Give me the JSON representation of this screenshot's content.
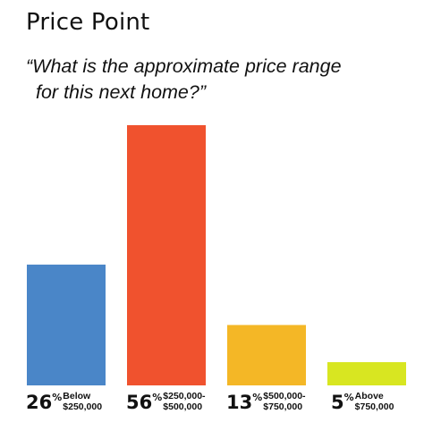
{
  "title": "Price Point",
  "question_line1": "“What is the approximate price range",
  "question_line2": "for this next home?”",
  "chart_data": {
    "type": "bar",
    "categories": [
      "Below $250,000",
      "$250,000-$500,000",
      "$500,000-$750,000",
      "Above $750,000"
    ],
    "values": [
      26,
      56,
      13,
      5
    ],
    "colors": [
      "#4a86c8",
      "#f0522e",
      "#f4b726",
      "#d8e621"
    ],
    "unit": "%",
    "ylim": [
      0,
      56
    ],
    "grid": false,
    "legend": "none",
    "data_labels": [
      {
        "value": "26",
        "sign": "%",
        "cat_line1": "Below",
        "cat_line2": "$250,000"
      },
      {
        "value": "56",
        "sign": "%",
        "cat_line1": "$250,000-",
        "cat_line2": "$500,000"
      },
      {
        "value": "13",
        "sign": "%",
        "cat_line1": "$500,000-",
        "cat_line2": "$750,000"
      },
      {
        "value": "5",
        "sign": "%",
        "cat_line1": "Above",
        "cat_line2": "$750,000"
      }
    ]
  }
}
